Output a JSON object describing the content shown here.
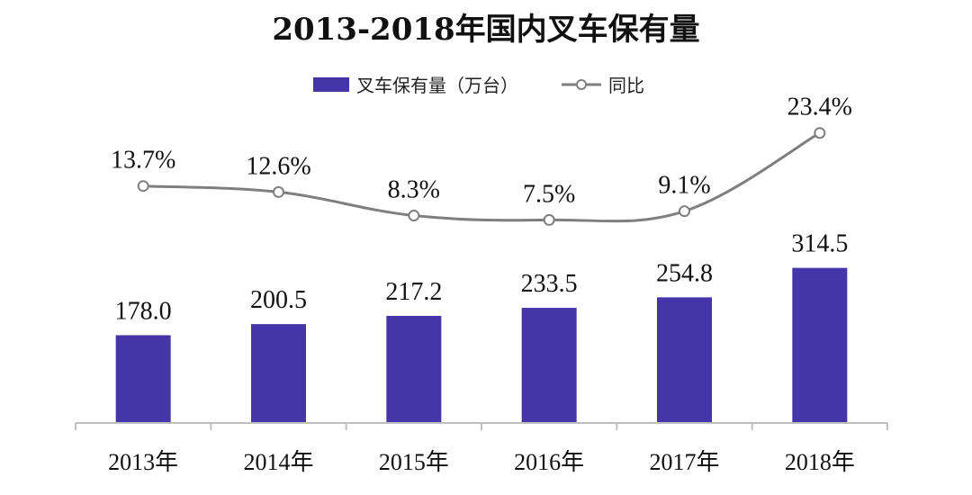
{
  "chart_data": {
    "type": "bar",
    "title": "2013-2018年国内叉车保有量",
    "categories": [
      "2013年",
      "2014年",
      "2015年",
      "2016年",
      "2017年",
      "2018年"
    ],
    "series": [
      {
        "name": "叉车保有量（万台）",
        "type": "bar",
        "values": [
          178.0,
          200.5,
          217.2,
          233.5,
          254.8,
          314.5
        ],
        "labels": [
          "178.0",
          "200.5",
          "217.2",
          "233.5",
          "254.8",
          "314.5"
        ],
        "color": "#4535A8"
      },
      {
        "name": "同比",
        "type": "line",
        "values": [
          13.7,
          12.6,
          8.3,
          7.5,
          9.1,
          23.4
        ],
        "labels": [
          "13.7%",
          "12.6%",
          "8.3%",
          "7.5%",
          "9.1%",
          "23.4%"
        ],
        "color": "#7F7F7F"
      }
    ],
    "legend_position": "top-center",
    "grid": false,
    "xlabel": "",
    "ylabel": ""
  }
}
